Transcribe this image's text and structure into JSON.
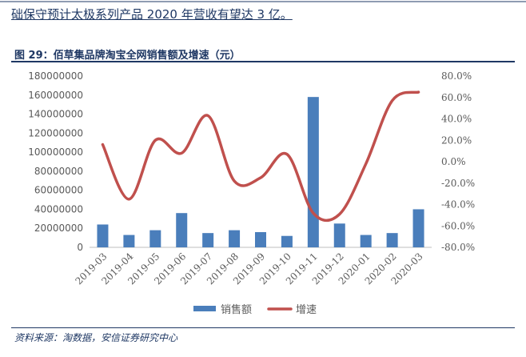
{
  "intro_text": "础保守预计太极系列产品 2020 年营收有望达 3 亿。",
  "figure_title": "图 29：佰草集品牌淘宝全网销售额及增速（元）",
  "source": "资料来源：淘数据，安信证券研究中心",
  "colors": {
    "bar": "#4a7ebb",
    "line": "#c0504d",
    "text": "#1f3864",
    "axis_text": "#595959"
  },
  "chart_data": {
    "type": "bar+line",
    "categories": [
      "2019-03",
      "2019-04",
      "2019-05",
      "2019-06",
      "2019-07",
      "2019-08",
      "2019-09",
      "2019-10",
      "2019-11",
      "2019-12",
      "2020-01",
      "2020-02",
      "2020-03"
    ],
    "series": [
      {
        "name": "销售额",
        "type": "bar",
        "axis": "left",
        "values": [
          24000000,
          13000000,
          18000000,
          36000000,
          15000000,
          18000000,
          16000000,
          12000000,
          158000000,
          25000000,
          13000000,
          15000000,
          40000000
        ]
      },
      {
        "name": "增速",
        "type": "line",
        "axis": "right",
        "values": [
          0.16,
          -0.35,
          0.2,
          0.08,
          0.43,
          -0.18,
          -0.15,
          0.07,
          -0.48,
          -0.49,
          -0.02,
          0.57,
          0.65
        ]
      }
    ],
    "left_axis": {
      "min": 0,
      "max": 180000000,
      "step": 20000000,
      "ticks": [
        "0",
        "20000000",
        "40000000",
        "60000000",
        "80000000",
        "100000000",
        "120000000",
        "140000000",
        "160000000",
        "180000000"
      ]
    },
    "right_axis": {
      "min": -0.8,
      "max": 0.8,
      "step": 0.2,
      "ticks": [
        "-80.0%",
        "-60.0%",
        "-40.0%",
        "-20.0%",
        "0.0%",
        "20.0%",
        "40.0%",
        "60.0%",
        "80.0%"
      ]
    },
    "legend": {
      "position": "bottom",
      "items": [
        "销售额",
        "增速"
      ]
    },
    "grid": false
  }
}
